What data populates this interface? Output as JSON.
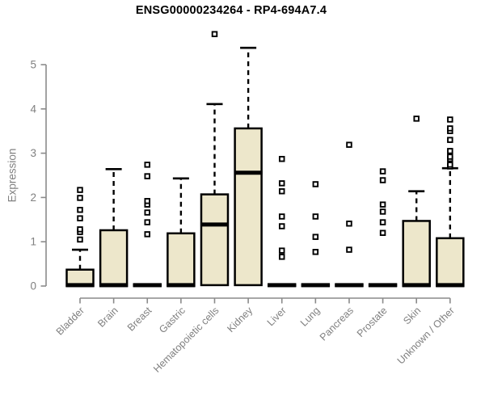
{
  "colors": {
    "background": "#ffffff",
    "box_fill": "#EDE7CB",
    "box_stroke": "#000000",
    "median": "#000000",
    "whisker": "#000000",
    "outlier_fill": "#ffffff",
    "axis": "#8A8A8A",
    "tick_label": "#808080",
    "title": "#000000"
  },
  "chart_data": {
    "type": "boxplot",
    "title": "ENSG00000234264 - RP4-694A7.4",
    "ylabel": "Expression",
    "xlabel": "",
    "ylim": [
      0,
      5.8
    ],
    "yticks": [
      0,
      1,
      2,
      3,
      4,
      5
    ],
    "grid": false,
    "legend": false,
    "categories": [
      "Bladder",
      "Brain",
      "Breast",
      "Gastric",
      "Hematopoietic cells",
      "Kidney",
      "Liver",
      "Lung",
      "Pancreas",
      "Prostate",
      "Skin",
      "Unknown / Other"
    ],
    "series": [
      {
        "name": "Bladder",
        "whisker_low": 0,
        "q1": 0,
        "median": 0.02,
        "q3": 0.37,
        "whisker_high": 0.82,
        "outliers": [
          1.05,
          1.22,
          1.28,
          1.53,
          1.72,
          1.99,
          2.17
        ]
      },
      {
        "name": "Brain",
        "whisker_low": 0,
        "q1": 0,
        "median": 0.02,
        "q3": 1.26,
        "whisker_high": 2.64,
        "outliers": []
      },
      {
        "name": "Breast",
        "whisker_low": 0,
        "q1": 0,
        "median": 0.02,
        "q3": 0.04,
        "whisker_high": 0.04,
        "outliers": [
          1.17,
          1.44,
          1.66,
          1.84,
          1.92,
          2.48,
          2.74
        ]
      },
      {
        "name": "Gastric",
        "whisker_low": 0,
        "q1": 0,
        "median": 0.02,
        "q3": 1.19,
        "whisker_high": 2.43,
        "outliers": []
      },
      {
        "name": "Hematopoietic cells",
        "whisker_low": 0,
        "q1": 0.02,
        "median": 1.39,
        "q3": 2.07,
        "whisker_high": 4.11,
        "outliers": [
          5.69
        ]
      },
      {
        "name": "Kidney",
        "whisker_low": 0,
        "q1": 0.02,
        "median": 2.56,
        "q3": 3.56,
        "whisker_high": 5.38,
        "outliers": []
      },
      {
        "name": "Liver",
        "whisker_low": 0,
        "q1": 0,
        "median": 0.02,
        "q3": 0.04,
        "whisker_high": 0.04,
        "outliers": [
          0.66,
          0.8,
          1.35,
          1.57,
          2.14,
          2.32,
          2.87
        ]
      },
      {
        "name": "Lung",
        "whisker_low": 0,
        "q1": 0,
        "median": 0.02,
        "q3": 0.04,
        "whisker_high": 0.04,
        "outliers": [
          0.77,
          1.11,
          1.57,
          2.3
        ]
      },
      {
        "name": "Pancreas",
        "whisker_low": 0,
        "q1": 0,
        "median": 0.02,
        "q3": 0.04,
        "whisker_high": 0.04,
        "outliers": [
          0.82,
          1.41,
          3.19
        ]
      },
      {
        "name": "Prostate",
        "whisker_low": 0,
        "q1": 0,
        "median": 0.02,
        "q3": 0.04,
        "whisker_high": 0.04,
        "outliers": [
          1.2,
          1.44,
          1.68,
          1.84,
          2.39,
          2.59
        ]
      },
      {
        "name": "Skin",
        "whisker_low": 0,
        "q1": 0,
        "median": 0.02,
        "q3": 1.47,
        "whisker_high": 2.14,
        "outliers": [
          3.78
        ]
      },
      {
        "name": "Unknown / Other",
        "whisker_low": 0,
        "q1": 0,
        "median": 0.02,
        "q3": 1.08,
        "whisker_high": 2.66,
        "outliers": [
          2.7,
          2.74,
          2.87,
          2.92,
          3.05,
          3.3,
          3.5,
          3.56,
          3.76
        ]
      }
    ]
  }
}
